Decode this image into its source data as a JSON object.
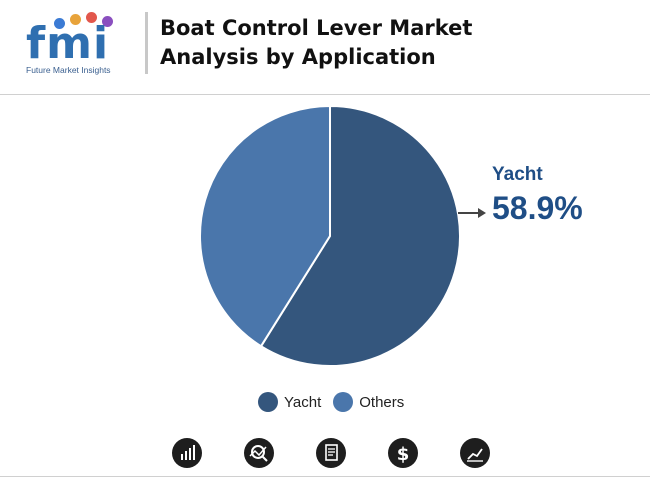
{
  "header": {
    "logo_letters": "fmi",
    "logo_tagline": "Future Market Insights",
    "title_line1": "Boat Control Lever Market",
    "title_line2": "Analysis by Application"
  },
  "chart_data": {
    "type": "pie",
    "categories": [
      "Yacht",
      "Others"
    ],
    "values": [
      58.9,
      41.1
    ],
    "colors": [
      "#34567d",
      "#4a76ab"
    ],
    "callout": {
      "label": "Yacht",
      "value": "58.9%"
    },
    "legend_position": "bottom"
  },
  "footer_icons": [
    "bar-chart-icon",
    "magnifier-chart-icon",
    "document-icon",
    "dollar-icon",
    "trend-chart-icon"
  ]
}
